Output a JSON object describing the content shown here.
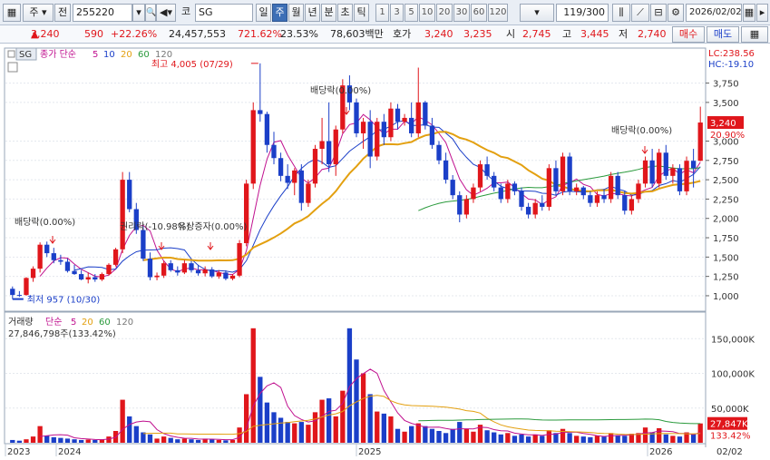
{
  "toolbar": {
    "market": "주",
    "prev": "전",
    "code": "255220",
    "name_prefix": "코",
    "name": "SG",
    "periods": [
      "일",
      "주",
      "월",
      "년",
      "분",
      "초",
      "틱"
    ],
    "active_period": "주",
    "intervals": [
      "1",
      "3",
      "5",
      "10",
      "20",
      "30",
      "60",
      "120"
    ],
    "page_count": "119/300",
    "date": "2026/02/02"
  },
  "quote": {
    "price": "3,240",
    "change": "590",
    "change_pct": "+22.26%",
    "volume": "24,457,553",
    "vol_ratio": "721.62%",
    "turnover": "23.53%",
    "amount": "78,603백만",
    "hoga_label": "호가",
    "ask": "3,240",
    "bid": "3,235",
    "open_label": "시",
    "open": "2,745",
    "high_label": "고",
    "high": "3,445",
    "low_label": "저",
    "low": "2,740",
    "buy_label": "매수",
    "sell_label": "매도",
    "colors": {
      "up": "#e0161b",
      "down": "#1b3fc8",
      "selected": "#3d6fb6"
    }
  },
  "price_panel": {
    "tag": "SG",
    "legend_title": "종가 단순",
    "ma_periods": [
      "5",
      "10",
      "20",
      "60",
      "120"
    ],
    "ma_colors": [
      "#c0118f",
      "#1b3fc8",
      "#e3a010",
      "#2a9a3c",
      "#777777"
    ],
    "lc": "LC:238.56",
    "hc": "HC:-19.10",
    "y_ticks": [
      "3,750",
      "3,500",
      "3,240",
      "3,000",
      "2,750",
      "2,500",
      "2,250",
      "2,000",
      "1,750",
      "1,500",
      "1,250",
      "1,000"
    ],
    "current_pct": "20.90%",
    "annotations": {
      "high": "최고 4,005 (07/29)",
      "low": "최저 957 (10/30)",
      "dividend1": "배당락(0.00%)",
      "dividend2": "배당락(0.00%)",
      "dividend3": "배당락(0.00%)",
      "rights": "권리락(-10.98%)",
      "capital": "유상증자(0.00%)"
    }
  },
  "volume_panel": {
    "title": "거래량",
    "legend_title": "단순",
    "ma_periods": [
      "5",
      "20",
      "60",
      "120"
    ],
    "ma_colors": [
      "#c0118f",
      "#e3a010",
      "#2a9a3c",
      "#777777"
    ],
    "volume_text": "27,846,798주(133.42%)",
    "y_ticks": [
      "150,000K",
      "100,000K",
      "50,000K"
    ],
    "current_value": "27,847K",
    "current_pct": "133.42%"
  },
  "x_axis": [
    "2023",
    "2024",
    "2025",
    "2026",
    "02/02"
  ],
  "chart_data": {
    "type": "candlestick",
    "y_range": [
      800,
      4050
    ],
    "current_price": 3240,
    "candles": [
      [
        1090,
        1120,
        957,
        1010
      ],
      [
        1010,
        1060,
        985,
        1000
      ],
      [
        1010,
        1240,
        1000,
        1230
      ],
      [
        1230,
        1380,
        1180,
        1350
      ],
      [
        1350,
        1690,
        1300,
        1660
      ],
      [
        1660,
        1700,
        1500,
        1550
      ],
      [
        1550,
        1620,
        1420,
        1460
      ],
      [
        1460,
        1530,
        1400,
        1440
      ],
      [
        1440,
        1480,
        1300,
        1320
      ],
      [
        1320,
        1400,
        1270,
        1280
      ],
      [
        1280,
        1330,
        1200,
        1210
      ],
      [
        1210,
        1300,
        1160,
        1240
      ],
      [
        1240,
        1280,
        1180,
        1210
      ],
      [
        1210,
        1300,
        1190,
        1280
      ],
      [
        1280,
        1420,
        1260,
        1400
      ],
      [
        1400,
        1620,
        1380,
        1600
      ],
      [
        1600,
        2600,
        1550,
        2500
      ],
      [
        2500,
        2600,
        2080,
        2120
      ],
      [
        2120,
        2200,
        1800,
        1850
      ],
      [
        1850,
        1900,
        1450,
        1480
      ],
      [
        1480,
        1560,
        1200,
        1240
      ],
      [
        1240,
        1300,
        1200,
        1260
      ],
      [
        1260,
        1450,
        1230,
        1420
      ],
      [
        1420,
        1460,
        1310,
        1330
      ],
      [
        1330,
        1380,
        1260,
        1300
      ],
      [
        1300,
        1460,
        1280,
        1420
      ],
      [
        1420,
        1450,
        1300,
        1330
      ],
      [
        1330,
        1400,
        1260,
        1290
      ],
      [
        1290,
        1380,
        1250,
        1340
      ],
      [
        1340,
        1370,
        1230,
        1250
      ],
      [
        1250,
        1330,
        1220,
        1300
      ],
      [
        1300,
        1330,
        1200,
        1220
      ],
      [
        1220,
        1280,
        1200,
        1260
      ],
      [
        1260,
        1720,
        1240,
        1680
      ],
      [
        1680,
        2500,
        1640,
        2450
      ],
      [
        2450,
        3500,
        2380,
        3400
      ],
      [
        3400,
        4005,
        3250,
        3350
      ],
      [
        3350,
        3380,
        2850,
        2950
      ],
      [
        2950,
        3120,
        2700,
        2780
      ],
      [
        2780,
        2850,
        2480,
        2550
      ],
      [
        2550,
        2700,
        2380,
        2460
      ],
      [
        2460,
        2650,
        2300,
        2620
      ],
      [
        2620,
        2700,
        2100,
        2200
      ],
      [
        2200,
        2500,
        2150,
        2450
      ],
      [
        2450,
        2950,
        2400,
        2900
      ],
      [
        2900,
        3300,
        2700,
        3000
      ],
      [
        3000,
        3500,
        2600,
        2700
      ],
      [
        2700,
        3200,
        2550,
        3150
      ],
      [
        3150,
        3800,
        3100,
        3720
      ],
      [
        3720,
        3850,
        3400,
        3500
      ],
      [
        3500,
        3550,
        3050,
        3100
      ],
      [
        3100,
        3300,
        2900,
        3250
      ],
      [
        3250,
        3400,
        2650,
        2800
      ],
      [
        2800,
        3300,
        2750,
        3250
      ],
      [
        3250,
        3350,
        2950,
        3050
      ],
      [
        3050,
        3500,
        3000,
        3420
      ],
      [
        3420,
        3480,
        3150,
        3250
      ],
      [
        3250,
        3350,
        3200,
        3300
      ],
      [
        3300,
        3500,
        3050,
        3100
      ],
      [
        3100,
        3950,
        3050,
        3500
      ],
      [
        3500,
        3520,
        3150,
        3200
      ],
      [
        3200,
        3300,
        2900,
        2950
      ],
      [
        2950,
        3000,
        2700,
        2750
      ],
      [
        2750,
        2850,
        2450,
        2500
      ],
      [
        2500,
        2560,
        2250,
        2300
      ],
      [
        2300,
        2350,
        1950,
        2050
      ],
      [
        2050,
        2300,
        2000,
        2250
      ],
      [
        2250,
        2450,
        2200,
        2400
      ],
      [
        2400,
        2750,
        2350,
        2700
      ],
      [
        2700,
        2800,
        2500,
        2550
      ],
      [
        2550,
        2600,
        2350,
        2400
      ],
      [
        2400,
        2450,
        2200,
        2250
      ],
      [
        2250,
        2500,
        2200,
        2450
      ],
      [
        2450,
        2480,
        2300,
        2350
      ],
      [
        2350,
        2400,
        2100,
        2150
      ],
      [
        2150,
        2200,
        2000,
        2050
      ],
      [
        2050,
        2250,
        2000,
        2200
      ],
      [
        2200,
        2300,
        2100,
        2150
      ],
      [
        2150,
        2700,
        2100,
        2650
      ],
      [
        2650,
        2750,
        2300,
        2350
      ],
      [
        2350,
        2850,
        2300,
        2800
      ],
      [
        2800,
        2850,
        2300,
        2350
      ],
      [
        2350,
        2450,
        2300,
        2400
      ],
      [
        2400,
        2420,
        2250,
        2300
      ],
      [
        2300,
        2350,
        2150,
        2200
      ],
      [
        2200,
        2350,
        2150,
        2300
      ],
      [
        2300,
        2380,
        2200,
        2250
      ],
      [
        2250,
        2600,
        2200,
        2550
      ],
      [
        2550,
        2600,
        2250,
        2300
      ],
      [
        2300,
        2350,
        2050,
        2100
      ],
      [
        2100,
        2300,
        2050,
        2250
      ],
      [
        2250,
        2500,
        2200,
        2450
      ],
      [
        2450,
        2800,
        2400,
        2750
      ],
      [
        2750,
        2900,
        2400,
        2450
      ],
      [
        2450,
        2900,
        2400,
        2850
      ],
      [
        2850,
        2950,
        2500,
        2550
      ],
      [
        2550,
        2700,
        2450,
        2650
      ],
      [
        2650,
        2700,
        2300,
        2350
      ],
      [
        2350,
        2800,
        2300,
        2745
      ],
      [
        2745,
        2900,
        2400,
        2650
      ],
      [
        2745,
        3445,
        2740,
        3240
      ]
    ],
    "volume_unit": "K",
    "volume_range": [
      0,
      170000
    ],
    "volumes": [
      4000,
      3000,
      5000,
      9000,
      24000,
      10000,
      8000,
      7000,
      6000,
      5000,
      4000,
      4500,
      4000,
      5000,
      9000,
      17000,
      62000,
      38000,
      24000,
      15000,
      12000,
      6000,
      9000,
      7000,
      5000,
      6000,
      5000,
      4000,
      6000,
      5000,
      4000,
      3500,
      4000,
      22000,
      70000,
      165000,
      95000,
      58000,
      44000,
      36000,
      30000,
      28000,
      30000,
      26000,
      44000,
      62000,
      64000,
      38000,
      75000,
      165000,
      120000,
      100000,
      70000,
      45000,
      42000,
      38000,
      20000,
      16000,
      24000,
      28000,
      24000,
      20000,
      17000,
      14000,
      20000,
      30000,
      20000,
      16000,
      26000,
      18000,
      15000,
      12000,
      14000,
      10000,
      12000,
      9000,
      12000,
      10000,
      18000,
      14000,
      20000,
      14000,
      10000,
      9000,
      8000,
      10000,
      9000,
      14000,
      11000,
      10000,
      13000,
      14000,
      22000,
      15000,
      21000,
      12000,
      10000,
      9000,
      15000,
      13000,
      27847
    ]
  }
}
